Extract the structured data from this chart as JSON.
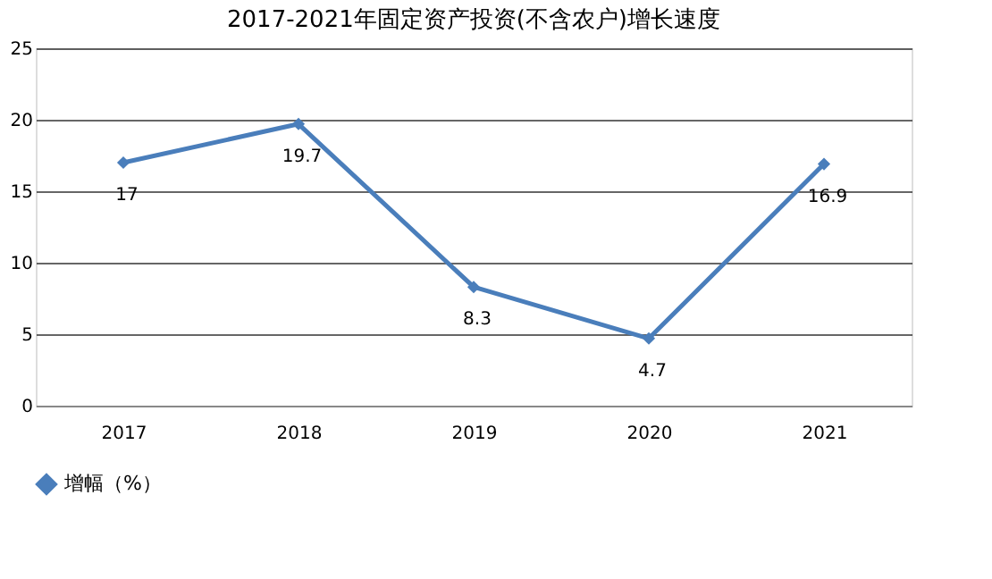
{
  "chart_data": {
    "type": "line",
    "title": "2017-2021年固定资产投资(不含农户)增长速度",
    "categories": [
      "2017",
      "2018",
      "2019",
      "2020",
      "2021"
    ],
    "series": [
      {
        "name": "增幅（%）",
        "color": "#4a7ebb",
        "values": [
          17,
          19.7,
          8.3,
          4.7,
          16.9
        ]
      }
    ],
    "ylim": [
      0,
      25
    ],
    "yticks": [
      0,
      5,
      10,
      15,
      20,
      25
    ],
    "grid": "y",
    "legend": "bottom",
    "marker": "diamond",
    "line_style": "solid",
    "data_labels": true
  }
}
